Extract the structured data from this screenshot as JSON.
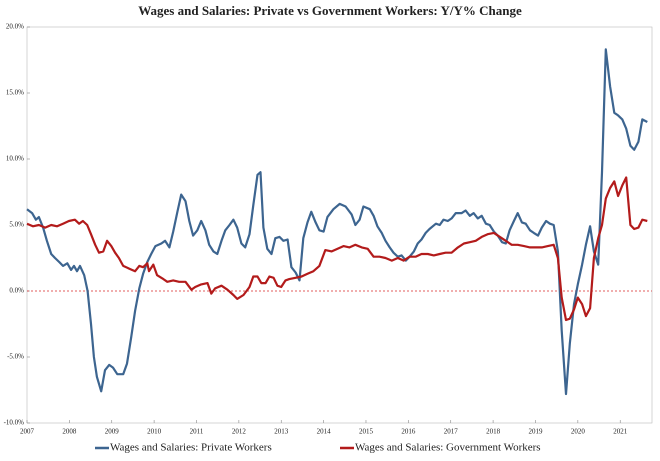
{
  "chart_data": {
    "type": "line",
    "title": "Wages and Salaries: Private vs Government Workers: Y/Y% Change",
    "xlim": [
      2007,
      2021.75
    ],
    "xticks": [
      2007,
      2008,
      2009,
      2010,
      2011,
      2012,
      2013,
      2014,
      2015,
      2016,
      2017,
      2018,
      2019,
      2020,
      2021
    ],
    "ylim": [
      -10,
      20
    ],
    "yticks": [
      {
        "value": -10,
        "label": "-10.0%"
      },
      {
        "value": -5,
        "label": "-5.0%"
      },
      {
        "value": 0,
        "label": "0.0%"
      },
      {
        "value": 5,
        "label": "5.0%"
      },
      {
        "value": 10,
        "label": "10.0%"
      },
      {
        "value": 15,
        "label": "15.0%"
      },
      {
        "value": 20,
        "label": "20.0%"
      }
    ],
    "zero_line_color": "#d62728",
    "legend": "bottom",
    "series": [
      {
        "name": "Wages and Salaries: Private Workers",
        "color": "#3d6590",
        "x": [
          2007.0,
          2007.12,
          2007.21,
          2007.28,
          2007.38,
          2007.47,
          2007.57,
          2007.66,
          2007.76,
          2007.85,
          2007.95,
          2008.04,
          2008.11,
          2008.18,
          2008.25,
          2008.35,
          2008.43,
          2008.51,
          2008.58,
          2008.65,
          2008.75,
          2008.84,
          2008.94,
          2009.03,
          2009.13,
          2009.27,
          2009.36,
          2009.46,
          2009.55,
          2009.65,
          2009.74,
          2009.84,
          2009.93,
          2010.03,
          2010.17,
          2010.26,
          2010.36,
          2010.45,
          2010.55,
          2010.64,
          2010.74,
          2010.83,
          2010.92,
          2011.02,
          2011.11,
          2011.21,
          2011.3,
          2011.4,
          2011.49,
          2011.59,
          2011.68,
          2011.78,
          2011.87,
          2011.96,
          2012.06,
          2012.15,
          2012.25,
          2012.34,
          2012.44,
          2012.51,
          2012.58,
          2012.67,
          2012.77,
          2012.86,
          2012.96,
          2013.05,
          2013.15,
          2013.24,
          2013.34,
          2013.43,
          2013.52,
          2013.62,
          2013.71,
          2013.81,
          2013.9,
          2014.0,
          2014.09,
          2014.23,
          2014.38,
          2014.52,
          2014.66,
          2014.75,
          2014.85,
          2014.94,
          2015.09,
          2015.18,
          2015.27,
          2015.37,
          2015.46,
          2015.56,
          2015.65,
          2015.75,
          2015.84,
          2015.94,
          2016.03,
          2016.13,
          2016.22,
          2016.31,
          2016.41,
          2016.5,
          2016.65,
          2016.74,
          2016.83,
          2016.93,
          2017.02,
          2017.12,
          2017.26,
          2017.35,
          2017.45,
          2017.54,
          2017.64,
          2017.73,
          2017.83,
          2017.92,
          2018.02,
          2018.11,
          2018.21,
          2018.3,
          2018.39,
          2018.49,
          2018.58,
          2018.68,
          2018.77,
          2018.87,
          2018.96,
          2019.06,
          2019.15,
          2019.25,
          2019.34,
          2019.43,
          2019.53,
          2019.62,
          2019.72,
          2019.81,
          2019.91,
          2020.0,
          2020.1,
          2020.19,
          2020.29,
          2020.38,
          2020.48,
          2020.57,
          2020.66,
          2020.76,
          2020.86,
          2020.95,
          2021.05,
          2021.14,
          2021.24,
          2021.33,
          2021.43,
          2021.52,
          2021.64
        ],
        "values": [
          6.2,
          5.9,
          5.4,
          5.6,
          4.8,
          3.8,
          2.8,
          2.5,
          2.2,
          1.9,
          2.1,
          1.6,
          1.9,
          1.5,
          1.9,
          1.2,
          0,
          -2.5,
          -5,
          -6.5,
          -7.6,
          -6.0,
          -5.6,
          -5.8,
          -6.3,
          -6.3,
          -5.5,
          -3.5,
          -1.5,
          0.2,
          1.3,
          2.2,
          2.8,
          3.4,
          3.6,
          3.8,
          3.3,
          4.5,
          6.0,
          7.3,
          6.8,
          5.3,
          4.2,
          4.6,
          5.3,
          4.6,
          3.5,
          3.0,
          2.8,
          3.8,
          4.6,
          5.0,
          5.4,
          4.8,
          3.6,
          3.3,
          4.3,
          6.5,
          8.8,
          9.0,
          4.8,
          3.2,
          2.8,
          4.0,
          4.1,
          3.8,
          3.9,
          1.8,
          1.4,
          0.8,
          4.0,
          5.2,
          6.0,
          5.2,
          4.6,
          4.5,
          5.6,
          6.2,
          6.6,
          6.4,
          5.8,
          5.0,
          5.4,
          6.4,
          6.2,
          5.7,
          4.9,
          4.4,
          3.8,
          3.3,
          2.9,
          2.6,
          2.7,
          2.3,
          2.6,
          3.0,
          3.6,
          3.9,
          4.4,
          4.7,
          5.1,
          5.0,
          5.4,
          5.3,
          5.5,
          5.9,
          5.9,
          6.1,
          5.7,
          5.9,
          5.5,
          5.7,
          5.1,
          5.0,
          4.5,
          4.2,
          3.7,
          3.6,
          4.6,
          5.3,
          5.9,
          5.2,
          5.1,
          4.6,
          4.4,
          4.2,
          4.8,
          5.3,
          5.1,
          5.0,
          3.0,
          -3,
          -7.8,
          -4.0,
          -1.0,
          0.5,
          2.0,
          3.5,
          4.9,
          3.0,
          2.0,
          9,
          18.3,
          15.5,
          13.5,
          13.3,
          13.0,
          12.3,
          11.0,
          10.7,
          11.3,
          13,
          12.8
        ]
      },
      {
        "name": "Wages and Salaries: Government Workers",
        "color": "#b31b1b",
        "x": [
          2007.0,
          2007.14,
          2007.28,
          2007.43,
          2007.57,
          2007.71,
          2007.85,
          2007.99,
          2008.13,
          2008.23,
          2008.32,
          2008.42,
          2008.51,
          2008.61,
          2008.7,
          2008.8,
          2008.89,
          2008.99,
          2009.08,
          2009.17,
          2009.27,
          2009.41,
          2009.55,
          2009.65,
          2009.74,
          2009.84,
          2009.88,
          2009.98,
          2010.07,
          2010.22,
          2010.31,
          2010.45,
          2010.59,
          2010.74,
          2010.88,
          2010.97,
          2011.11,
          2011.26,
          2011.35,
          2011.44,
          2011.59,
          2011.73,
          2011.87,
          2011.96,
          2012.11,
          2012.25,
          2012.34,
          2012.44,
          2012.53,
          2012.63,
          2012.72,
          2012.82,
          2012.91,
          2013.0,
          2013.1,
          2013.19,
          2013.34,
          2013.48,
          2013.62,
          2013.76,
          2013.9,
          2014.04,
          2014.19,
          2014.33,
          2014.47,
          2014.61,
          2014.75,
          2014.9,
          2015.04,
          2015.18,
          2015.32,
          2015.46,
          2015.61,
          2015.75,
          2015.89,
          2016.03,
          2016.17,
          2016.31,
          2016.46,
          2016.6,
          2016.74,
          2016.88,
          2017.02,
          2017.17,
          2017.31,
          2017.45,
          2017.59,
          2017.73,
          2017.87,
          2018.02,
          2018.16,
          2018.3,
          2018.44,
          2018.58,
          2018.73,
          2018.87,
          2019.01,
          2019.15,
          2019.29,
          2019.43,
          2019.53,
          2019.62,
          2019.72,
          2019.81,
          2019.91,
          2020.0,
          2020.1,
          2020.19,
          2020.29,
          2020.38,
          2020.48,
          2020.57,
          2020.66,
          2020.76,
          2020.86,
          2020.95,
          2021.05,
          2021.14,
          2021.24,
          2021.33,
          2021.43,
          2021.52,
          2021.64
        ],
        "values": [
          5.1,
          4.9,
          5.0,
          4.8,
          5.0,
          4.9,
          5.1,
          5.3,
          5.4,
          5.1,
          5.3,
          5.0,
          4.3,
          3.5,
          2.9,
          3.0,
          3.8,
          3.4,
          2.9,
          2.5,
          1.9,
          1.7,
          1.5,
          1.9,
          1.8,
          2.1,
          1.5,
          2.0,
          1.2,
          0.9,
          0.7,
          0.8,
          0.7,
          0.7,
          0.1,
          0.3,
          0.5,
          0.6,
          -0.2,
          0.2,
          0.4,
          0.1,
          -0.3,
          -0.6,
          -0.3,
          0.3,
          1.1,
          1.1,
          0.6,
          0.6,
          1.1,
          1.0,
          0.4,
          0.3,
          0.8,
          0.9,
          1.0,
          1.1,
          1.3,
          1.5,
          1.9,
          3.1,
          3.0,
          3.2,
          3.4,
          3.3,
          3.5,
          3.3,
          3.2,
          2.6,
          2.6,
          2.5,
          2.3,
          2.5,
          2.3,
          2.6,
          2.6,
          2.8,
          2.8,
          2.7,
          2.8,
          2.9,
          2.9,
          3.3,
          3.6,
          3.7,
          3.8,
          4.1,
          4.3,
          4.4,
          4.1,
          3.8,
          3.5,
          3.5,
          3.4,
          3.3,
          3.3,
          3.3,
          3.4,
          3.5,
          2.5,
          -0.5,
          -2.2,
          -2.1,
          -1.4,
          -0.5,
          -1.0,
          -1.9,
          -1.3,
          2.5,
          4.0,
          5.0,
          7.0,
          7.8,
          8.3,
          7.2,
          8.0,
          8.6,
          5.0,
          4.7,
          4.8,
          5.4,
          5.3
        ]
      }
    ]
  }
}
